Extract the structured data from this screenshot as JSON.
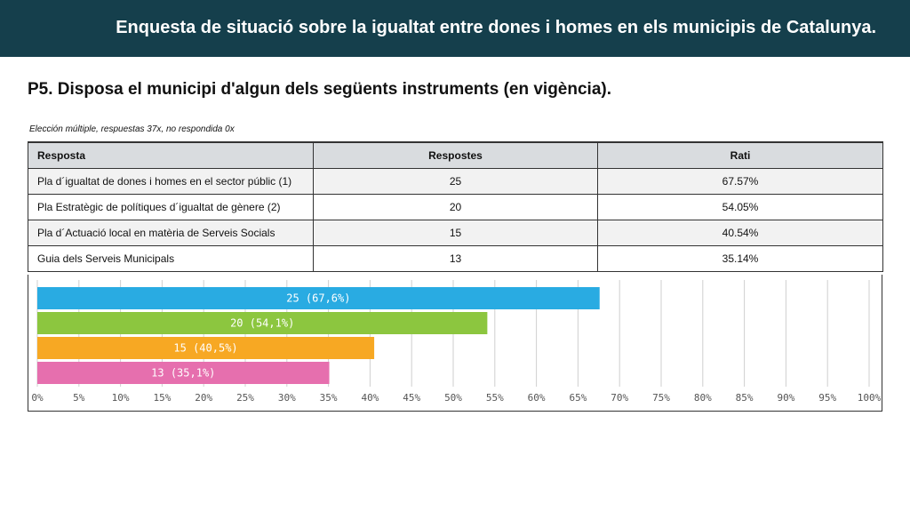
{
  "header": {
    "title": "Enquesta de situació sobre la  igualtat entre dones i homes en els municipis de Catalunya."
  },
  "question": {
    "title": "P5. Disposa el municipi d'algun dels següents instruments (en vigència)."
  },
  "note": "Elección múltiple, respuestas 37x, no respondida 0x",
  "table": {
    "headers": [
      "Resposta",
      "Respostes",
      "Rati"
    ],
    "rows": [
      [
        "Pla d´igualtat de dones i homes en el sector públic (1)",
        "25",
        "67.57%"
      ],
      [
        "Pla Estratègic de polítiques d´igualtat de gènere (2)",
        "20",
        "54.05%"
      ],
      [
        "Pla d´Actuació local en matèria de Serveis Socials",
        "15",
        "40.54%"
      ],
      [
        "Guia dels Serveis Municipals",
        "13",
        "35.14%"
      ]
    ]
  },
  "chart_data": {
    "type": "bar",
    "orientation": "horizontal",
    "categories": [
      "Pla d´igualtat de dones i homes en el sector públic (1)",
      "Pla Estratègic de polítiques d´igualtat de gènere (2)",
      "Pla d´Actuació local en matèria de Serveis Socials",
      "Guia dels Serveis Municipals"
    ],
    "values": [
      67.6,
      54.1,
      40.5,
      35.1
    ],
    "data_labels": [
      "25 (67,6%)",
      "20 (54,1%)",
      "15 (40,5%)",
      "13 (35,1%)"
    ],
    "colors": [
      "#29abe2",
      "#8cc63f",
      "#f7a823",
      "#e66fae"
    ],
    "xlim": [
      0,
      100
    ],
    "xticks": [
      "0%",
      "5%",
      "10%",
      "15%",
      "20%",
      "25%",
      "30%",
      "35%",
      "40%",
      "45%",
      "50%",
      "55%",
      "60%",
      "65%",
      "70%",
      "75%",
      "80%",
      "85%",
      "90%",
      "95%",
      "100%"
    ],
    "grid": true,
    "title": "",
    "xlabel": "",
    "ylabel": ""
  }
}
